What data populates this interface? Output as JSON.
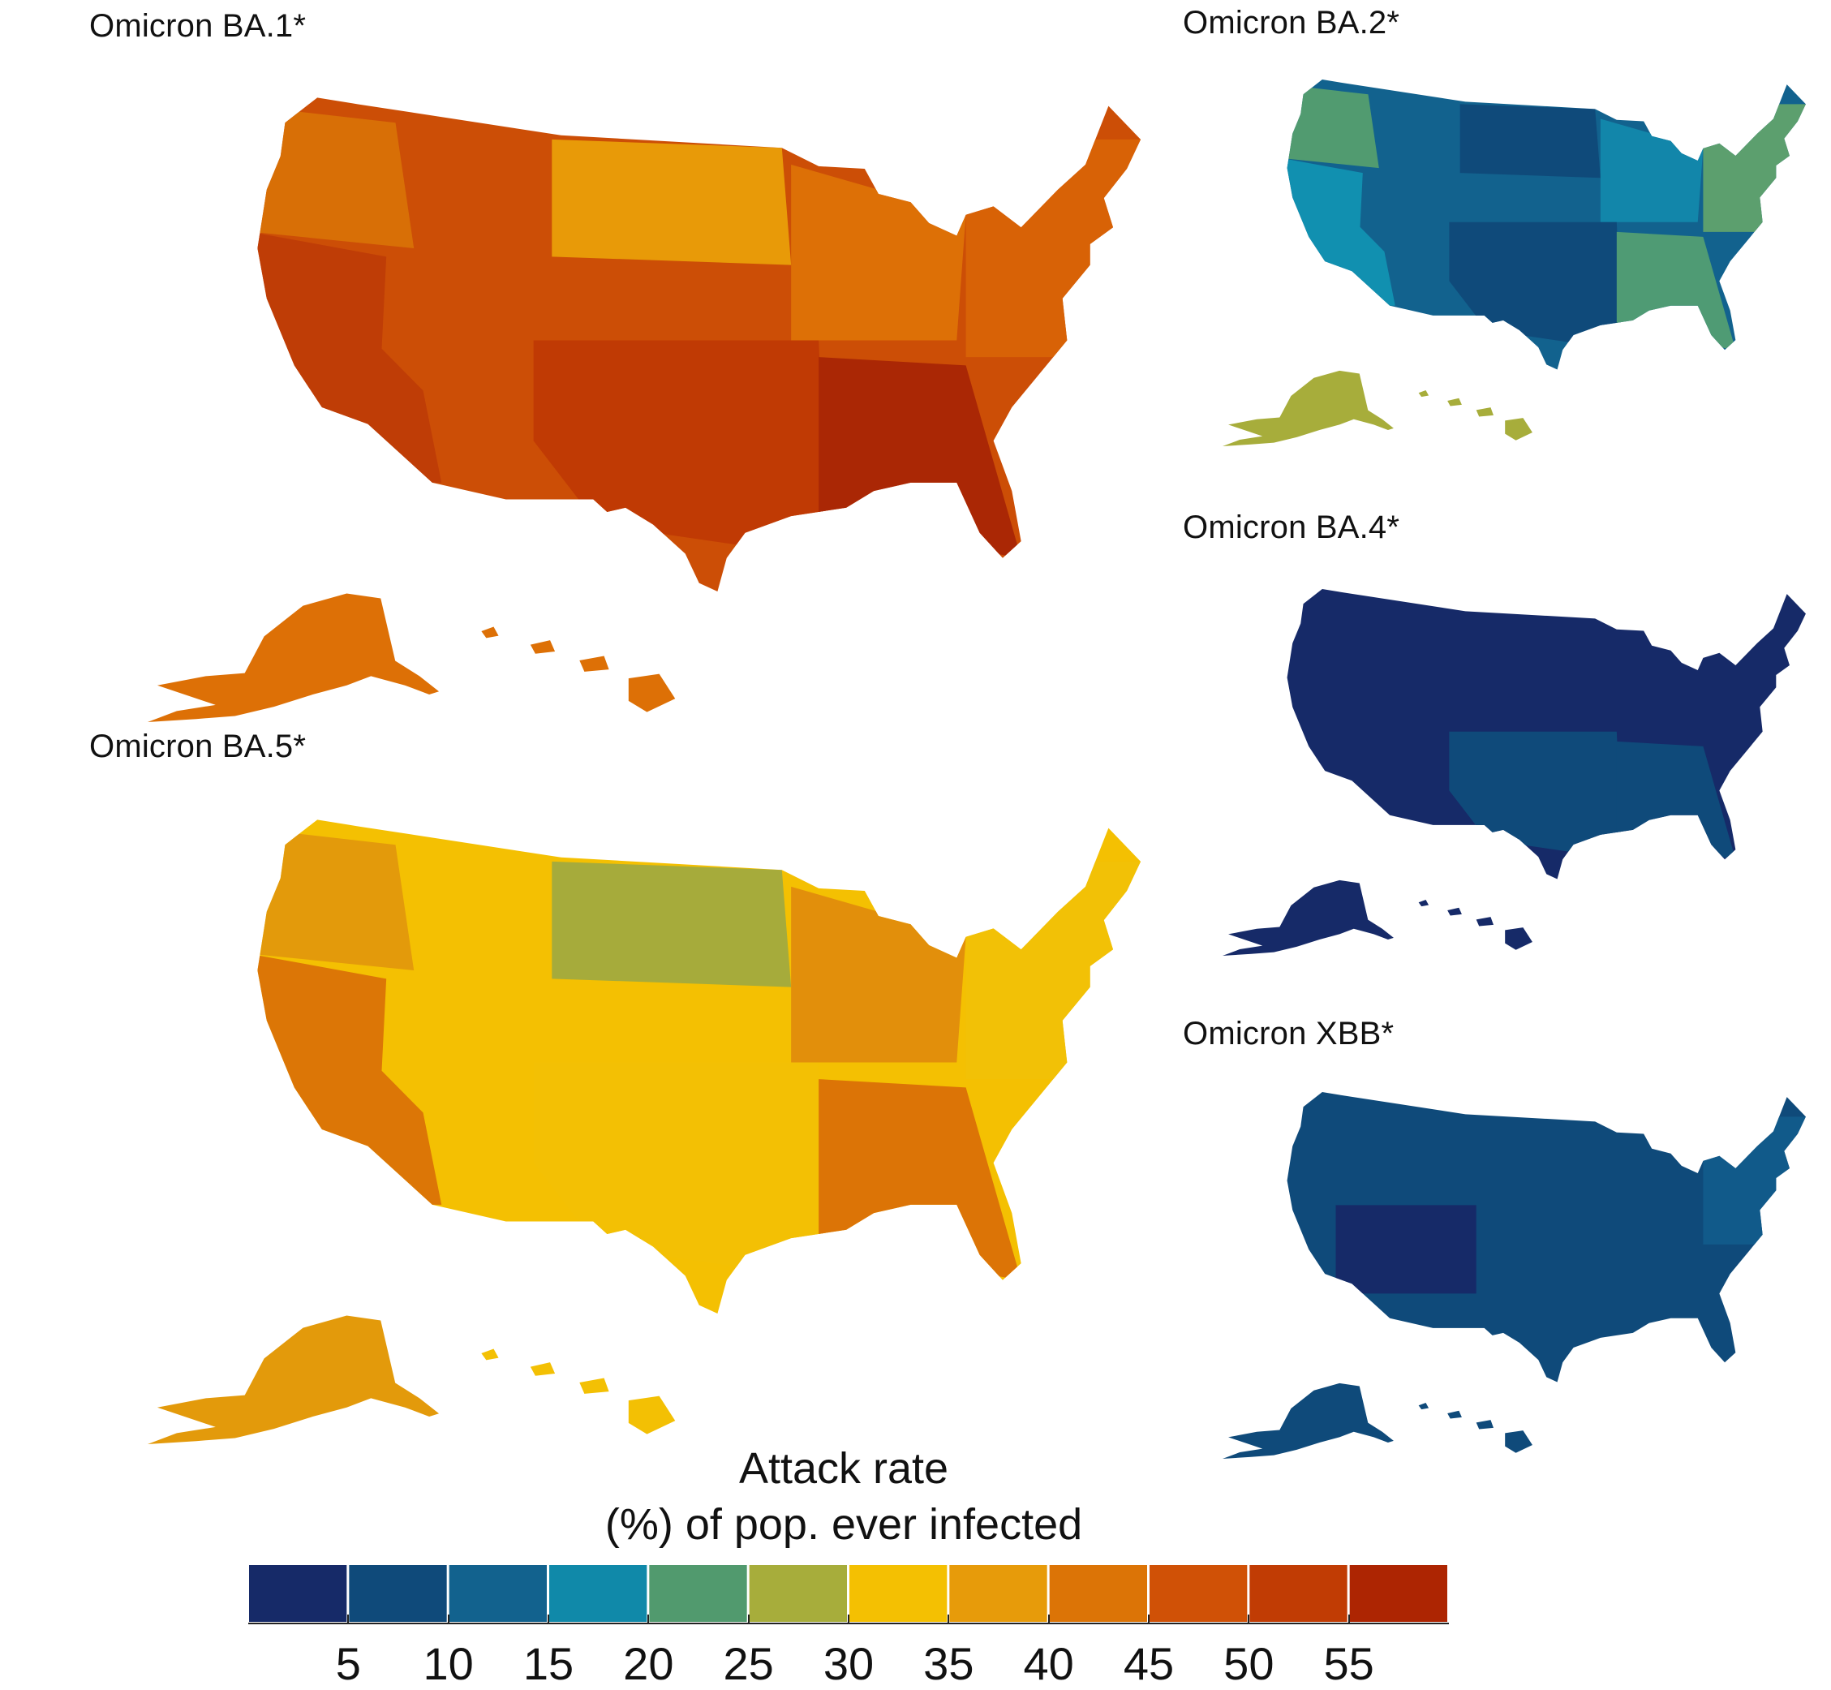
{
  "panels": [
    {
      "title": "Omicron BA.1*",
      "main_fill": "#cc4e06",
      "accents": [
        {
          "region": "west-coast",
          "fill": "#bf3d06"
        },
        {
          "region": "pacific-northwest",
          "fill": "#d86f06"
        },
        {
          "region": "northern-plains",
          "fill": "#e89a08"
        },
        {
          "region": "midwest",
          "fill": "#dd7006"
        },
        {
          "region": "south-central",
          "fill": "#c03a04"
        },
        {
          "region": "gulf",
          "fill": "#aa2705"
        },
        {
          "region": "northeast",
          "fill": "#d86206"
        }
      ],
      "alaska_fill": "#dd7006",
      "hawaii_fill": "#dd7006"
    },
    {
      "title": "Omicron BA.2*",
      "main_fill": "#12628e",
      "accents": [
        {
          "region": "west-coast",
          "fill": "#1190b0"
        },
        {
          "region": "pacific-northwest",
          "fill": "#519b70"
        },
        {
          "region": "northern-plains",
          "fill": "#0f4a7a"
        },
        {
          "region": "midwest",
          "fill": "#1286aa"
        },
        {
          "region": "south-central",
          "fill": "#0f4a7a"
        },
        {
          "region": "gulf",
          "fill": "#4f9b74"
        },
        {
          "region": "northeast",
          "fill": "#5c9f6e"
        }
      ],
      "alaska_fill": "#a7ad3b",
      "hawaii_fill": "#a7ad3b"
    },
    {
      "title": "Omicron BA.4*",
      "main_fill": "#162a68",
      "accents": [
        {
          "region": "south-central",
          "fill": "#0f4a7a"
        },
        {
          "region": "gulf",
          "fill": "#0f4a7a"
        }
      ],
      "alaska_fill": "#162a68",
      "hawaii_fill": "#162a68"
    },
    {
      "title": "Omicron BA.5*",
      "main_fill": "#f4c002",
      "accents": [
        {
          "region": "west-coast",
          "fill": "#dc7606"
        },
        {
          "region": "pacific-northwest",
          "fill": "#e39a0b"
        },
        {
          "region": "northern-plains",
          "fill": "#a6ab3b"
        },
        {
          "region": "midwest",
          "fill": "#e28f0b"
        },
        {
          "region": "south-central",
          "fill": "#f3c004"
        },
        {
          "region": "gulf",
          "fill": "#dc7406"
        },
        {
          "region": "northeast",
          "fill": "#f2c106"
        }
      ],
      "alaska_fill": "#e39a0b",
      "hawaii_fill": "#f3c004"
    },
    {
      "title": "Omicron XBB*",
      "main_fill": "#0f4a7a",
      "accents": [
        {
          "region": "southwest",
          "fill": "#162a68"
        },
        {
          "region": "northeast",
          "fill": "#115a8a"
        }
      ],
      "alaska_fill": "#0f4a7a",
      "hawaii_fill": "#0f4a7a"
    }
  ],
  "legend": {
    "title_line1": "Attack rate",
    "title_line2": "(%) of pop. ever infected",
    "colors": [
      "#162a68",
      "#0f4a7a",
      "#12628e",
      "#1089a9",
      "#519a6e",
      "#a7ad3b",
      "#f4c002",
      "#e79b0a",
      "#dc7406",
      "#d05106",
      "#c13c04",
      "#ad2502"
    ],
    "ticks": [
      "5",
      "10",
      "15",
      "20",
      "25",
      "30",
      "35",
      "40",
      "45",
      "50",
      "55"
    ]
  }
}
